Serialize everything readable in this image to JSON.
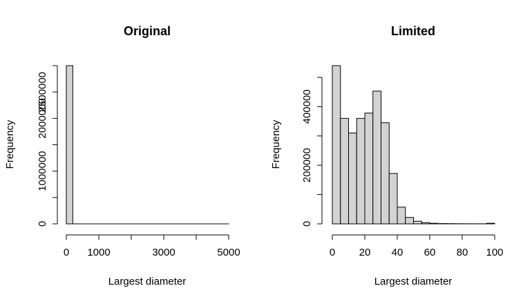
{
  "chart_data": [
    {
      "type": "bar",
      "title": "Original",
      "xlabel": "Largest diameter",
      "ylabel": "Frequency",
      "x_ticks": [
        0,
        1000,
        2000,
        3000,
        4000,
        5000
      ],
      "x_tick_labels": [
        "0",
        "1000",
        "",
        "3000",
        "",
        "5000"
      ],
      "y_ticks": [
        0,
        500000,
        1000000,
        1500000,
        2000000,
        2500000,
        3000000
      ],
      "y_tick_labels": [
        "0",
        "",
        "1000000",
        "",
        "2000000",
        "2500000",
        ""
      ],
      "xlim": [
        0,
        5000
      ],
      "ylim": [
        0,
        3000000
      ],
      "bin_width": 200,
      "bin_start": 0,
      "values": [
        3000000,
        300,
        50,
        20,
        10,
        5,
        4,
        3,
        2,
        2,
        2,
        1,
        1,
        1,
        1,
        1,
        1,
        1,
        1,
        1,
        1,
        1,
        1,
        1,
        1
      ]
    },
    {
      "type": "bar",
      "title": "Limited",
      "xlabel": "Largest diameter",
      "ylabel": "Frequency",
      "x_ticks": [
        0,
        20,
        40,
        60,
        80,
        100
      ],
      "x_tick_labels": [
        "0",
        "20",
        "40",
        "60",
        "80",
        "100"
      ],
      "y_ticks": [
        0,
        100000,
        200000,
        300000,
        400000,
        500000
      ],
      "y_tick_labels": [
        "0",
        "",
        "200000",
        "",
        "400000",
        ""
      ],
      "xlim": [
        0,
        100
      ],
      "ylim": [
        0,
        540000
      ],
      "bin_width": 5,
      "bin_start": 0,
      "values": [
        540000,
        360000,
        310000,
        360000,
        378000,
        453000,
        345000,
        172000,
        57000,
        22000,
        9000,
        4000,
        2000,
        1000,
        800,
        500,
        400,
        300,
        300,
        2000
      ]
    }
  ]
}
